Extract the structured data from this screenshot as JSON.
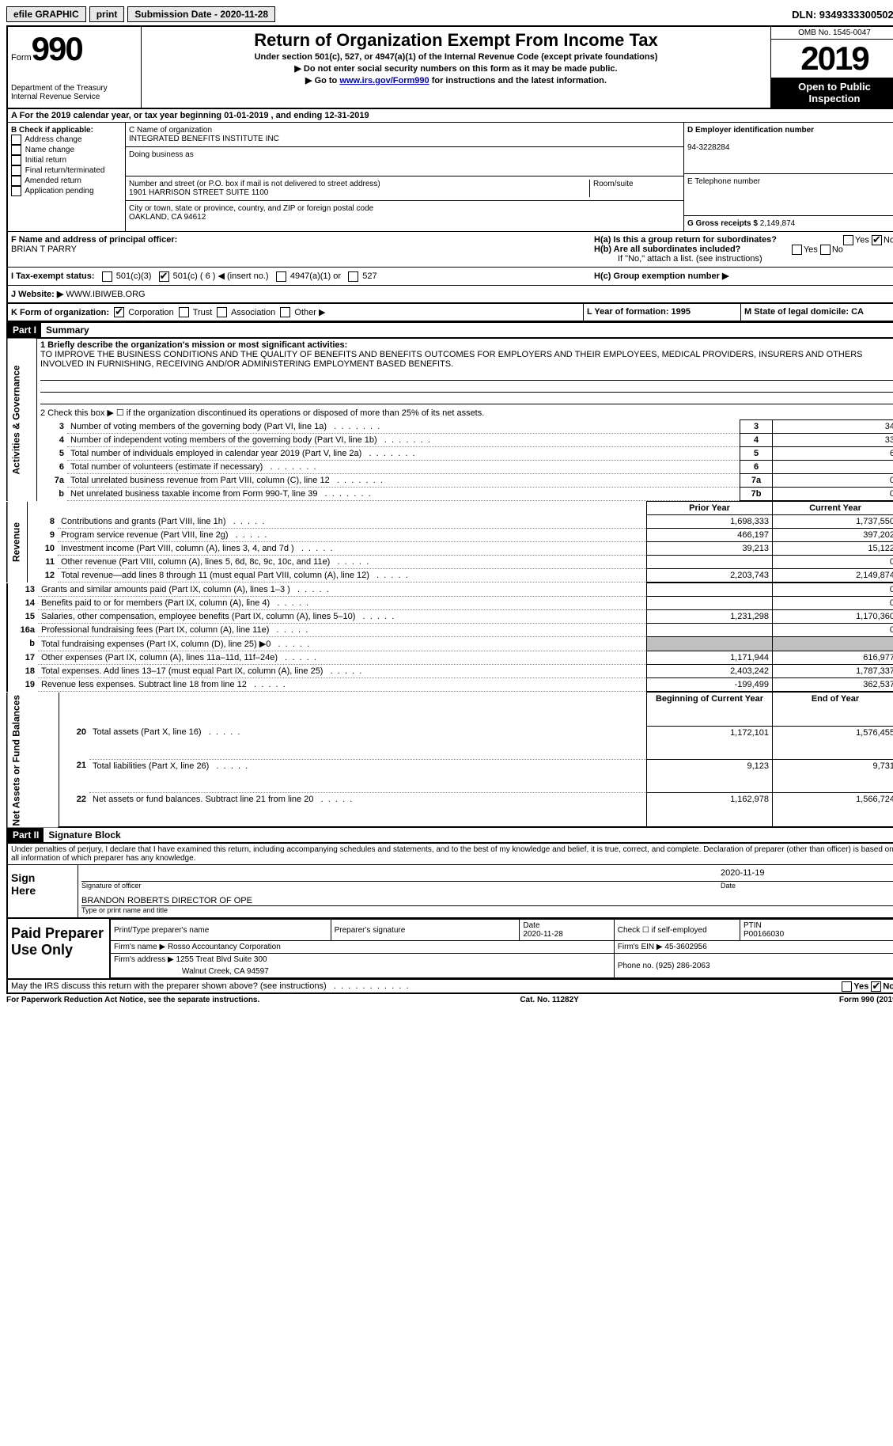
{
  "topbar": {
    "efile": "efile GRAPHIC",
    "print": "print",
    "submission": "Submission Date - 2020-11-28",
    "dln": "DLN: 93493333005020"
  },
  "header": {
    "form_label": "Form",
    "form_num": "990",
    "dept": "Department of the Treasury\nInternal Revenue Service",
    "title": "Return of Organization Exempt From Income Tax",
    "sub1": "Under section 501(c), 527, or 4947(a)(1) of the Internal Revenue Code (except private foundations)",
    "sub2": "▶ Do not enter social security numbers on this form as it may be made public.",
    "sub3_pre": "▶ Go to ",
    "sub3_link": "www.irs.gov/Form990",
    "sub3_post": " for instructions and the latest information.",
    "omb": "OMB No. 1545-0047",
    "year": "2019",
    "open": "Open to Public Inspection"
  },
  "row_a": "A For the 2019 calendar year, or tax year beginning 01-01-2019    , and ending 12-31-2019",
  "box_b": {
    "label": "B Check if applicable:",
    "items": [
      "Address change",
      "Name change",
      "Initial return",
      "Final return/terminated",
      "Amended return",
      "Application pending"
    ]
  },
  "box_c": {
    "name_label": "C Name of organization",
    "name": "INTEGRATED BENEFITS INSTITUTE INC",
    "dba_label": "Doing business as",
    "street_label": "Number and street (or P.O. box if mail is not delivered to street address)",
    "room_label": "Room/suite",
    "street": "1901 HARRISON STREET SUITE 1100",
    "city_label": "City or town, state or province, country, and ZIP or foreign postal code",
    "city": "OAKLAND, CA  94612"
  },
  "box_d": {
    "ein_label": "D Employer identification number",
    "ein": "94-3228284",
    "tel_label": "E Telephone number",
    "gross_label": "G Gross receipts $",
    "gross": "2,149,874"
  },
  "box_f": {
    "label": "F Name and address of principal officer:",
    "name": "BRIAN T PARRY"
  },
  "box_h": {
    "ha": "H(a)  Is this a group return for subordinates?",
    "hb": "H(b)  Are all subordinates included?",
    "hnote": "If \"No,\" attach a list. (see instructions)",
    "hc": "H(c)  Group exemption number ▶"
  },
  "row_i": {
    "label": "I    Tax-exempt status:",
    "opts": [
      "501(c)(3)",
      "501(c) ( 6 ) ◀ (insert no.)",
      "4947(a)(1) or",
      "527"
    ]
  },
  "row_j": {
    "label": "J    Website: ▶",
    "val": "WWW.IBIWEB.ORG"
  },
  "row_k": {
    "label": "K Form of organization:",
    "opts": [
      "Corporation",
      "Trust",
      "Association",
      "Other ▶"
    ]
  },
  "row_l": "L Year of formation: 1995",
  "row_m": "M State of legal domicile: CA",
  "part1": {
    "header": "Part I",
    "title": "Summary",
    "line1_label": "1   Briefly describe the organization's mission or most significant activities:",
    "mission": "TO IMPROVE THE BUSINESS CONDITIONS AND THE QUALITY OF BENEFITS AND BENEFITS OUTCOMES FOR EMPLOYERS AND THEIR EMPLOYEES, MEDICAL PROVIDERS, INSURERS AND OTHERS INVOLVED IN FURNISHING, RECEIVING AND/OR ADMINISTERING EMPLOYMENT BASED BENEFITS.",
    "line2": "2   Check this box ▶ ☐  if the organization discontinued its operations or disposed of more than 25% of its net assets.",
    "sidelabels": {
      "gov": "Activities & Governance",
      "rev": "Revenue",
      "exp": "Expenses",
      "net": "Net Assets or Fund Balances"
    },
    "rows_gov": [
      {
        "n": "3",
        "d": "Number of voting members of the governing body (Part VI, line 1a)",
        "b": "3",
        "v": "34"
      },
      {
        "n": "4",
        "d": "Number of independent voting members of the governing body (Part VI, line 1b)",
        "b": "4",
        "v": "33"
      },
      {
        "n": "5",
        "d": "Total number of individuals employed in calendar year 2019 (Part V, line 2a)",
        "b": "5",
        "v": "6"
      },
      {
        "n": "6",
        "d": "Total number of volunteers (estimate if necessary)",
        "b": "6",
        "v": ""
      },
      {
        "n": "7a",
        "d": "Total unrelated business revenue from Part VIII, column (C), line 12",
        "b": "7a",
        "v": "0"
      },
      {
        "n": "b",
        "d": "Net unrelated business taxable income from Form 990-T, line 39",
        "b": "7b",
        "v": "0"
      }
    ],
    "col_headers": {
      "prior": "Prior Year",
      "current": "Current Year"
    },
    "rows_rev": [
      {
        "n": "8",
        "d": "Contributions and grants (Part VIII, line 1h)",
        "p": "1,698,333",
        "c": "1,737,550"
      },
      {
        "n": "9",
        "d": "Program service revenue (Part VIII, line 2g)",
        "p": "466,197",
        "c": "397,202"
      },
      {
        "n": "10",
        "d": "Investment income (Part VIII, column (A), lines 3, 4, and 7d )",
        "p": "39,213",
        "c": "15,122"
      },
      {
        "n": "11",
        "d": "Other revenue (Part VIII, column (A), lines 5, 6d, 8c, 9c, 10c, and 11e)",
        "p": "",
        "c": "0"
      },
      {
        "n": "12",
        "d": "Total revenue—add lines 8 through 11 (must equal Part VIII, column (A), line 12)",
        "p": "2,203,743",
        "c": "2,149,874"
      }
    ],
    "rows_exp": [
      {
        "n": "13",
        "d": "Grants and similar amounts paid (Part IX, column (A), lines 1–3 )",
        "p": "",
        "c": "0"
      },
      {
        "n": "14",
        "d": "Benefits paid to or for members (Part IX, column (A), line 4)",
        "p": "",
        "c": "0"
      },
      {
        "n": "15",
        "d": "Salaries, other compensation, employee benefits (Part IX, column (A), lines 5–10)",
        "p": "1,231,298",
        "c": "1,170,360"
      },
      {
        "n": "16a",
        "d": "Professional fundraising fees (Part IX, column (A), line 11e)",
        "p": "",
        "c": "0"
      },
      {
        "n": "b",
        "d": "Total fundraising expenses (Part IX, column (D), line 25) ▶0",
        "p": "gray",
        "c": "gray"
      },
      {
        "n": "17",
        "d": "Other expenses (Part IX, column (A), lines 11a–11d, 11f–24e)",
        "p": "1,171,944",
        "c": "616,977"
      },
      {
        "n": "18",
        "d": "Total expenses. Add lines 13–17 (must equal Part IX, column (A), line 25)",
        "p": "2,403,242",
        "c": "1,787,337"
      },
      {
        "n": "19",
        "d": "Revenue less expenses. Subtract line 18 from line 12",
        "p": "-199,499",
        "c": "362,537"
      }
    ],
    "col_headers2": {
      "begin": "Beginning of Current Year",
      "end": "End of Year"
    },
    "rows_net": [
      {
        "n": "20",
        "d": "Total assets (Part X, line 16)",
        "p": "1,172,101",
        "c": "1,576,455"
      },
      {
        "n": "21",
        "d": "Total liabilities (Part X, line 26)",
        "p": "9,123",
        "c": "9,731"
      },
      {
        "n": "22",
        "d": "Net assets or fund balances. Subtract line 21 from line 20",
        "p": "1,162,978",
        "c": "1,566,724"
      }
    ]
  },
  "part2": {
    "header": "Part II",
    "title": "Signature Block",
    "decl": "Under penalties of perjury, I declare that I have examined this return, including accompanying schedules and statements, and to the best of my knowledge and belief, it is true, correct, and complete. Declaration of preparer (other than officer) is based on all information of which preparer has any knowledge.",
    "sign_here": "Sign Here",
    "sig_officer": "Signature of officer",
    "sig_date": "2020-11-19",
    "date_label": "Date",
    "officer_name": "BRANDON ROBERTS  DIRECTOR OF OPE",
    "type_name": "Type or print name and title",
    "paid_label": "Paid Preparer Use Only",
    "prep_name_label": "Print/Type preparer's name",
    "prep_sig_label": "Preparer's signature",
    "prep_date_label": "Date",
    "prep_date": "2020-11-28",
    "self_emp": "Check ☐ if self-employed",
    "ptin_label": "PTIN",
    "ptin": "P00166030",
    "firm_name_label": "Firm's name    ▶",
    "firm_name": "Rosso Accountancy Corporation",
    "firm_ein_label": "Firm's EIN ▶",
    "firm_ein": "45-3602956",
    "firm_addr_label": "Firm's address ▶",
    "firm_addr": "1255 Treat Blvd Suite 300",
    "firm_city": "Walnut Creek, CA  94597",
    "phone_label": "Phone no.",
    "phone": "(925) 286-2063"
  },
  "irs_discuss": "May the IRS discuss this return with the preparer shown above? (see instructions)",
  "footer": {
    "left": "For Paperwork Reduction Act Notice, see the separate instructions.",
    "mid": "Cat. No. 11282Y",
    "right": "Form 990 (2019)"
  }
}
